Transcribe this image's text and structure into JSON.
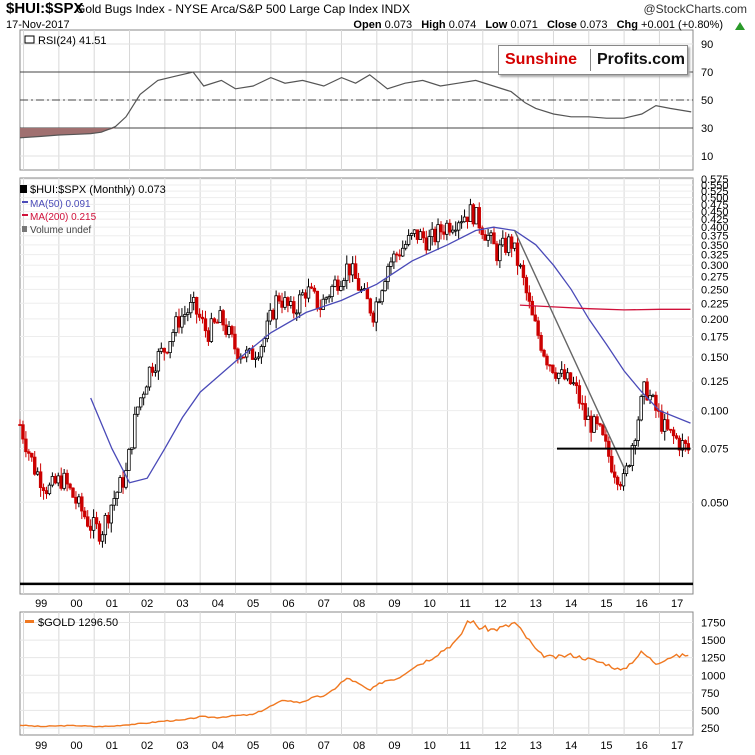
{
  "header": {
    "symbol": "$HUI:$SPX",
    "description": "Gold Bugs Index - NYSE Arca/S&P 500 Large Cap Index INDX",
    "site": "@StockCharts.com",
    "date": "17-Nov-2017",
    "open_label": "Open",
    "open": "0.073",
    "high_label": "High",
    "high": "0.074",
    "low_label": "Low",
    "low": "0.071",
    "close_label": "Close",
    "close": "0.073",
    "chg_label": "Chg",
    "chg": "+0.001 (+0.80%)",
    "chg_color": "#2a9a2a"
  },
  "brand": {
    "part1": "Sunshine",
    "part2": "Profits.com",
    "part1_color": "#d40000"
  },
  "legend": {
    "rsi": "RSI(24) 41.51",
    "main": "$HUI:$SPX (Monthly) 0.073",
    "ma50": "MA(50) 0.091",
    "ma200": "MA(200) 0.215",
    "volume": "Volume undef",
    "gold": "$GOLD 1296.50"
  },
  "colors": {
    "ma50": "#4a4ab8",
    "ma200": "#d0103a",
    "gold": "#f07820",
    "down_candle": "#cc0000",
    "up_candle": "#000000",
    "rsi_fill": "#a07070"
  },
  "chart_data": [
    {
      "type": "line",
      "name": "RSI(24)",
      "ylim": [
        0,
        100
      ],
      "yticks": [
        "10",
        "30",
        "50",
        "70",
        "90"
      ],
      "reference_lines": [
        30,
        50,
        70
      ],
      "x": [
        1998.9,
        1999.5,
        2000.0,
        2000.5,
        2000.9,
        2001.2,
        2001.6,
        2001.9,
        2002.3,
        2002.8,
        2003.3,
        2003.8,
        2004.1,
        2004.6,
        2005.0,
        2005.5,
        2006.0,
        2006.4,
        2006.9,
        2007.5,
        2008.0,
        2008.4,
        2008.8,
        2009.3,
        2009.8,
        2010.3,
        2010.8,
        2011.3,
        2011.8,
        2012.3,
        2012.8,
        2013.2,
        2013.5,
        2014.0,
        2014.5,
        2015.0,
        2015.5,
        2016.0,
        2016.5,
        2016.9,
        2017.3,
        2017.9
      ],
      "y": [
        23,
        24,
        25,
        25.5,
        26,
        27,
        31,
        38,
        54,
        64,
        67,
        70,
        60,
        64,
        58,
        60,
        66,
        62,
        64,
        60,
        66,
        62,
        68,
        58,
        62,
        64,
        60,
        62,
        64,
        60,
        56,
        48,
        44,
        40,
        38,
        38,
        37,
        37,
        40,
        46,
        44,
        41.51
      ]
    },
    {
      "type": "candlestick",
      "name": "$HUI:$SPX (Monthly)",
      "scale": "log",
      "ylim": [
        0.025,
        0.58
      ],
      "yticks": [
        "0.050",
        "0.075",
        "0.100",
        "0.125",
        "0.150",
        "0.175",
        "0.200",
        "0.225",
        "0.250",
        "0.275",
        "0.300",
        "0.325",
        "0.350",
        "0.375",
        "0.400",
        "0.425",
        "0.450",
        "0.475",
        "0.500",
        "0.525",
        "0.550",
        "0.575"
      ],
      "xlim": [
        1998.9,
        2017.95
      ],
      "xticks": [
        "99",
        "00",
        "01",
        "02",
        "03",
        "04",
        "05",
        "06",
        "07",
        "08",
        "09",
        "10",
        "11",
        "12",
        "13",
        "14",
        "15",
        "16",
        "17"
      ],
      "x": [
        1998.9,
        1999.3,
        1999.7,
        2000.1,
        2000.5,
        2000.9,
        2001.2,
        2001.5,
        2001.9,
        2002.2,
        2002.6,
        2003.0,
        2003.4,
        2003.8,
        2004.2,
        2004.6,
        2005.0,
        2005.4,
        2005.8,
        2006.2,
        2006.6,
        2007.0,
        2007.4,
        2007.8,
        2008.2,
        2008.6,
        2008.9,
        2009.3,
        2009.7,
        2010.1,
        2010.5,
        2010.9,
        2011.3,
        2011.7,
        2012.0,
        2012.4,
        2012.8,
        2013.1,
        2013.4,
        2013.8,
        2014.2,
        2014.6,
        2014.9,
        2015.3,
        2015.7,
        2016.0,
        2016.3,
        2016.6,
        2016.9,
        2017.2,
        2017.5,
        2017.88
      ],
      "y": [
        0.09,
        0.065,
        0.055,
        0.06,
        0.05,
        0.042,
        0.04,
        0.05,
        0.062,
        0.1,
        0.14,
        0.16,
        0.2,
        0.22,
        0.18,
        0.2,
        0.16,
        0.15,
        0.17,
        0.24,
        0.21,
        0.25,
        0.22,
        0.26,
        0.3,
        0.24,
        0.21,
        0.3,
        0.34,
        0.38,
        0.36,
        0.4,
        0.43,
        0.45,
        0.4,
        0.33,
        0.36,
        0.28,
        0.2,
        0.15,
        0.13,
        0.12,
        0.095,
        0.085,
        0.065,
        0.058,
        0.085,
        0.12,
        0.1,
        0.085,
        0.08,
        0.073
      ],
      "ma50": {
        "x": [
          2000.9,
          2001.5,
          2002.0,
          2002.5,
          2003.0,
          2003.5,
          2004.0,
          2005.0,
          2006.0,
          2007.0,
          2008.0,
          2009.0,
          2010.0,
          2011.0,
          2011.8,
          2012.3,
          2012.9,
          2013.5,
          2014.0,
          2014.5,
          2015.0,
          2015.5,
          2016.0,
          2016.5,
          2017.0,
          2017.88
        ],
        "y": [
          0.11,
          0.075,
          0.058,
          0.06,
          0.075,
          0.095,
          0.115,
          0.145,
          0.18,
          0.21,
          0.23,
          0.26,
          0.31,
          0.35,
          0.39,
          0.4,
          0.39,
          0.35,
          0.3,
          0.25,
          0.2,
          0.165,
          0.135,
          0.115,
          0.1,
          0.091
        ]
      },
      "ma200": {
        "x": [
          2013.05,
          2014.0,
          2015.0,
          2016.0,
          2017.0,
          2017.88
        ],
        "y": [
          0.222,
          0.219,
          0.216,
          0.214,
          0.215,
          0.215
        ]
      },
      "trendlines": [
        {
          "x": [
            2012.9,
            2016.05
          ],
          "y": [
            0.39,
            0.063
          ]
        },
        {
          "x": [
            2014.1,
            2017.88
          ],
          "y": [
            0.075,
            0.075
          ]
        },
        {
          "x": [
            1998.9,
            2017.95
          ],
          "y": [
            0.027,
            0.027
          ]
        }
      ]
    },
    {
      "type": "line",
      "name": "$GOLD",
      "ylim": [
        150,
        1900
      ],
      "yticks": [
        "250",
        "500",
        "750",
        "1000",
        "1250",
        "1500",
        "1750"
      ],
      "x": [
        1998.9,
        1999.5,
        2000.0,
        2000.5,
        2001.0,
        2001.5,
        2002.0,
        2002.5,
        2003.0,
        2003.5,
        2004.0,
        2004.5,
        2005.0,
        2005.5,
        2006.0,
        2006.4,
        2006.8,
        2007.2,
        2007.6,
        2008.0,
        2008.2,
        2008.8,
        2009.2,
        2009.6,
        2010.0,
        2010.5,
        2011.0,
        2011.3,
        2011.6,
        2011.9,
        2012.3,
        2012.7,
        2012.9,
        2013.3,
        2013.6,
        2014.0,
        2014.5,
        2015.0,
        2015.5,
        2015.95,
        2016.5,
        2016.9,
        2017.3,
        2017.88
      ],
      "y": [
        290,
        270,
        280,
        285,
        270,
        275,
        300,
        320,
        350,
        360,
        410,
        400,
        425,
        440,
        560,
        650,
        610,
        680,
        720,
        900,
        960,
        780,
        920,
        960,
        1110,
        1230,
        1400,
        1500,
        1800,
        1680,
        1650,
        1700,
        1750,
        1500,
        1300,
        1250,
        1290,
        1230,
        1160,
        1060,
        1330,
        1170,
        1260,
        1296.5
      ]
    }
  ]
}
